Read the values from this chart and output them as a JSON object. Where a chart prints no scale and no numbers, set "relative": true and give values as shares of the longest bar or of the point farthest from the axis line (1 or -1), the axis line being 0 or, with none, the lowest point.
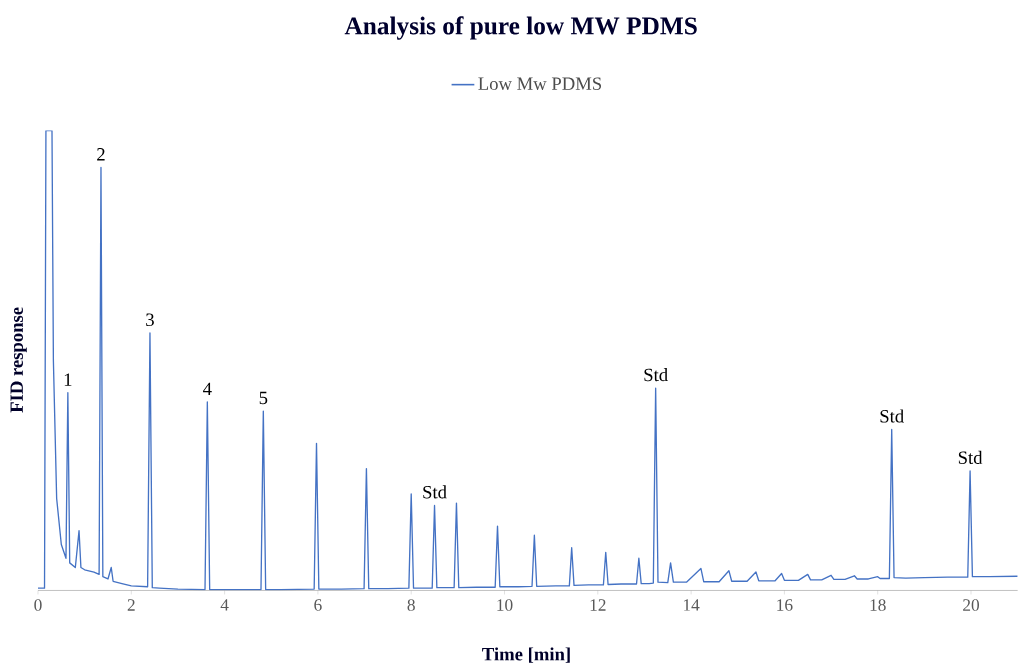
{
  "chart_data": {
    "type": "line",
    "title": "Analysis of pure low MW PDMS",
    "xlabel": "Time [min]",
    "ylabel": "FID response",
    "relative": true,
    "legend": "top",
    "marker": "none",
    "xlim": [
      0,
      21
    ],
    "xticks": [
      0,
      2,
      4,
      6,
      8,
      10,
      12,
      14,
      16,
      18,
      20
    ],
    "series": [
      {
        "name": "Low Mw PDMS",
        "color": "#4472c4",
        "x": [
          0,
          0.14,
          0.17,
          0.3,
          0.33,
          0.4,
          0.5,
          0.6,
          0.64,
          0.68,
          0.8,
          0.88,
          0.92,
          1.0,
          1.2,
          1.31,
          1.35,
          1.39,
          1.5,
          1.57,
          1.61,
          1.8,
          2.0,
          2.35,
          2.4,
          2.45,
          2.6,
          3.0,
          3.58,
          3.63,
          3.68,
          4.0,
          4.78,
          4.83,
          4.88,
          5.2,
          5.92,
          5.97,
          6.02,
          6.5,
          6.99,
          7.04,
          7.09,
          7.5,
          7.95,
          8.0,
          8.05,
          8.2,
          8.45,
          8.5,
          8.55,
          8.75,
          8.92,
          8.97,
          9.02,
          9.4,
          9.8,
          9.85,
          9.9,
          10.3,
          10.59,
          10.64,
          10.69,
          11.1,
          11.39,
          11.44,
          11.49,
          11.8,
          12.12,
          12.17,
          12.22,
          12.5,
          12.83,
          12.88,
          12.93,
          13.1,
          13.19,
          13.24,
          13.29,
          13.5,
          13.56,
          13.62,
          13.9,
          14.21,
          14.27,
          14.6,
          14.81,
          14.87,
          15.2,
          15.39,
          15.45,
          15.8,
          15.94,
          16.0,
          16.3,
          16.5,
          16.56,
          16.8,
          17.0,
          17.06,
          17.3,
          17.5,
          17.56,
          17.8,
          18.0,
          18.05,
          18.25,
          18.3,
          18.35,
          18.6,
          19.0,
          19.5,
          19.93,
          19.98,
          20.03,
          20.4,
          21.0
        ],
        "values": [
          0.005,
          0.005,
          1.0,
          1.0,
          0.5,
          0.2,
          0.1,
          0.07,
          0.43,
          0.06,
          0.05,
          0.13,
          0.05,
          0.045,
          0.04,
          0.035,
          0.92,
          0.03,
          0.025,
          0.05,
          0.02,
          0.015,
          0.01,
          0.008,
          0.56,
          0.006,
          0.005,
          0.003,
          0.002,
          0.41,
          0.002,
          0.002,
          0.002,
          0.39,
          0.002,
          0.002,
          0.003,
          0.32,
          0.003,
          0.003,
          0.004,
          0.265,
          0.004,
          0.004,
          0.005,
          0.21,
          0.005,
          0.005,
          0.005,
          0.185,
          0.006,
          0.006,
          0.006,
          0.19,
          0.006,
          0.007,
          0.007,
          0.14,
          0.008,
          0.008,
          0.009,
          0.12,
          0.009,
          0.01,
          0.01,
          0.093,
          0.011,
          0.012,
          0.012,
          0.083,
          0.013,
          0.014,
          0.014,
          0.07,
          0.015,
          0.015,
          0.016,
          0.44,
          0.018,
          0.017,
          0.06,
          0.018,
          0.018,
          0.048,
          0.019,
          0.019,
          0.043,
          0.02,
          0.02,
          0.04,
          0.021,
          0.021,
          0.037,
          0.022,
          0.022,
          0.035,
          0.023,
          0.023,
          0.033,
          0.024,
          0.024,
          0.032,
          0.025,
          0.025,
          0.03,
          0.026,
          0.026,
          0.35,
          0.028,
          0.027,
          0.028,
          0.029,
          0.029,
          0.26,
          0.03,
          0.03,
          0.031
        ]
      }
    ],
    "annotations": [
      {
        "text": "1",
        "x": 0.64,
        "y": 0.43
      },
      {
        "text": "2",
        "x": 1.35,
        "y": 0.92
      },
      {
        "text": "3",
        "x": 2.4,
        "y": 0.56
      },
      {
        "text": "4",
        "x": 3.63,
        "y": 0.41
      },
      {
        "text": "5",
        "x": 4.83,
        "y": 0.39
      },
      {
        "text": "Std",
        "x": 8.5,
        "y": 0.185
      },
      {
        "text": "Std",
        "x": 13.24,
        "y": 0.44
      },
      {
        "text": "Std",
        "x": 18.3,
        "y": 0.35
      },
      {
        "text": "Std",
        "x": 19.98,
        "y": 0.26
      }
    ]
  }
}
